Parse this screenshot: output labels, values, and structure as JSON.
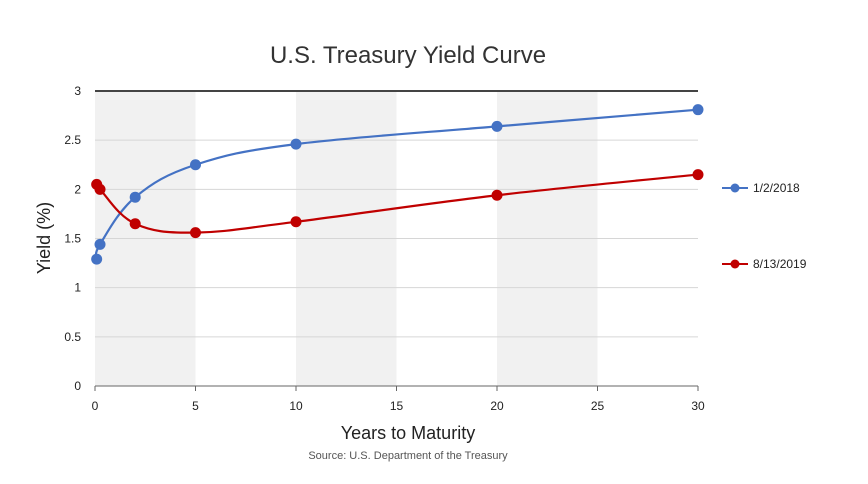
{
  "chart_data": {
    "type": "line",
    "title": "U.S. Treasury Yield Curve",
    "xlabel": "Years to Maturity",
    "ylabel": "Yield (%)",
    "source": "Source: U.S. Department of the Treasury",
    "xlim": [
      0,
      30
    ],
    "ylim": [
      0,
      3
    ],
    "xticks": [
      0,
      5,
      10,
      15,
      20,
      25,
      30
    ],
    "yticks": [
      0,
      0.5,
      1,
      1.5,
      2,
      2.5,
      3
    ],
    "xtick_labels": [
      "0",
      "5",
      "10",
      "15",
      "20",
      "25",
      "30"
    ],
    "ytick_labels": [
      "0",
      "0.5",
      "1",
      "1.5",
      "2",
      "2.5",
      "3"
    ],
    "grid": "horizontal",
    "shaded_bands": [
      [
        0,
        5
      ],
      [
        10,
        15
      ],
      [
        20,
        25
      ]
    ],
    "legend_position": "right",
    "series": [
      {
        "name": "1/2/2018",
        "color": "#4472C4",
        "x": [
          0.083,
          0.25,
          2,
          5,
          10,
          20,
          30
        ],
        "y": [
          1.29,
          1.44,
          1.92,
          2.25,
          2.46,
          2.64,
          2.81
        ]
      },
      {
        "name": "8/13/2019",
        "color": "#C00000",
        "x": [
          0.083,
          0.25,
          2,
          5,
          10,
          20,
          30
        ],
        "y": [
          2.05,
          2.0,
          1.65,
          1.56,
          1.67,
          1.94,
          2.15
        ]
      }
    ]
  }
}
